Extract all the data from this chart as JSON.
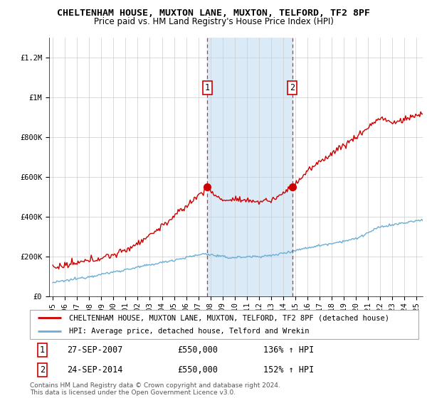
{
  "title": "CHELTENHAM HOUSE, MUXTON LANE, MUXTON, TELFORD, TF2 8PF",
  "subtitle": "Price paid vs. HM Land Registry's House Price Index (HPI)",
  "ylim": [
    0,
    1300000
  ],
  "yticks": [
    0,
    200000,
    400000,
    600000,
    800000,
    1000000,
    1200000
  ],
  "ytick_labels": [
    "£0",
    "£200K",
    "£400K",
    "£600K",
    "£800K",
    "£1M",
    "£1.2M"
  ],
  "hpi_color": "#6baed6",
  "price_color": "#cc0000",
  "shaded_color": "#daeaf7",
  "marker1_year": 2007.75,
  "marker2_year": 2014.75,
  "marker1_price": 550000,
  "marker2_price": 550000,
  "marker1_label": "1",
  "marker2_label": "2",
  "marker1_date_str": "27-SEP-2007",
  "marker1_price_str": "£550,000",
  "marker1_hpi_str": "136% ↑ HPI",
  "marker2_date_str": "24-SEP-2014",
  "marker2_price_str": "£550,000",
  "marker2_hpi_str": "152% ↑ HPI",
  "legend_label_red": "CHELTENHAM HOUSE, MUXTON LANE, MUXTON, TELFORD, TF2 8PF (detached house)",
  "legend_label_blue": "HPI: Average price, detached house, Telford and Wrekin",
  "footer": "Contains HM Land Registry data © Crown copyright and database right 2024.\nThis data is licensed under the Open Government Licence v3.0.",
  "title_fontsize": 9.5,
  "subtitle_fontsize": 8.5,
  "tick_fontsize": 7.5,
  "legend_fontsize": 7.5,
  "ann_fontsize": 8.5
}
